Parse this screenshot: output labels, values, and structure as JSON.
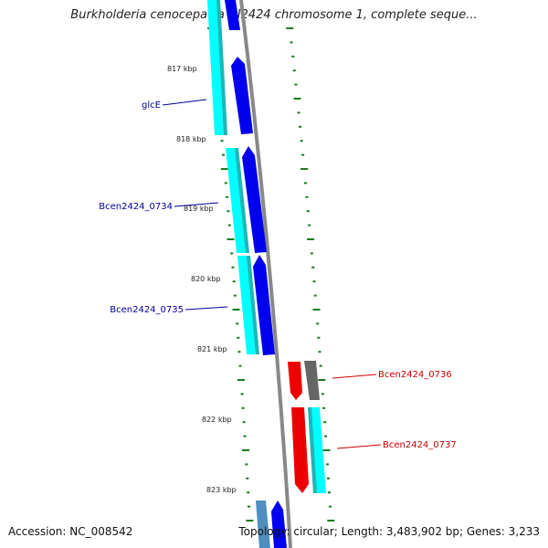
{
  "title": "Burkholderia cenocepacia HI2424 chromosome 1, complete seque...",
  "footer": {
    "accession": "Accession: NC_008542",
    "summary": "Topology: circular; Length: 3,483,902 bp; Genes: 3,233"
  },
  "colors": {
    "forward_cds": "#0000ee",
    "forward_gene": "#00ffff",
    "reverse_cds": "#ff0000",
    "reverse_gene": "#00ffff",
    "other_feature": "#666666",
    "backbone": "#888888",
    "ticks": "#1a7a1a",
    "label_forward": "#000099",
    "label_reverse": "#cc0000"
  },
  "ticks": [
    {
      "label": "817 kbp"
    },
    {
      "label": "818 kbp"
    },
    {
      "label": "819 kbp"
    },
    {
      "label": "820 kbp"
    },
    {
      "label": "821 kbp"
    },
    {
      "label": "822 kbp"
    },
    {
      "label": "823 kbp"
    }
  ],
  "genes": [
    {
      "name": "glcE",
      "strand": "forward"
    },
    {
      "name": "Bcen2424_0734",
      "strand": "forward"
    },
    {
      "name": "Bcen2424_0735",
      "strand": "forward"
    },
    {
      "name": "Bcen2424_0736",
      "strand": "reverse"
    },
    {
      "name": "Bcen2424_0737",
      "strand": "reverse"
    }
  ]
}
